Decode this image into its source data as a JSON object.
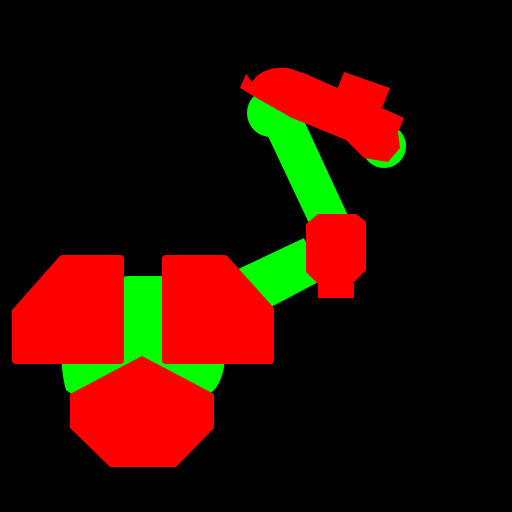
{
  "scene": {
    "background_color": "#000000",
    "colors": {
      "body": "#ff0000",
      "joint": "#00ff00"
    }
  }
}
